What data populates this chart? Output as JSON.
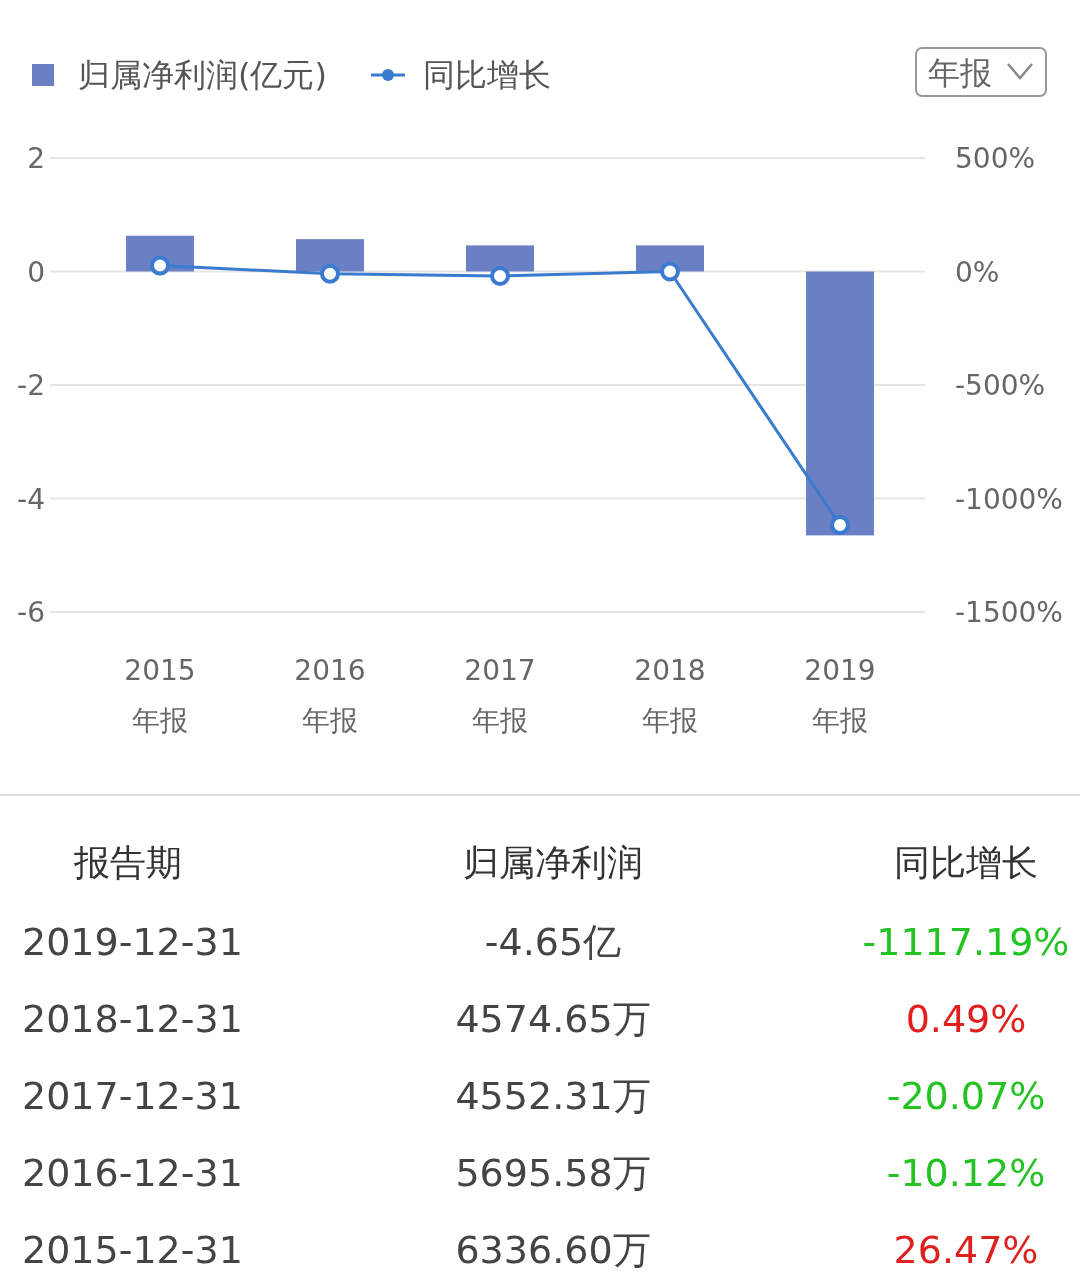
{
  "chart_data": {
    "type": "bar",
    "categories": [
      "2015 年报",
      "2016 年报",
      "2017 年报",
      "2018 年报",
      "2019 年报"
    ],
    "series": [
      {
        "name": "归属净利润(亿元)",
        "color": "#6b7fc4",
        "values": [
          0.63,
          0.57,
          0.46,
          0.46,
          -4.65
        ]
      },
      {
        "name": "同比增长",
        "type": "line",
        "axis": "y2",
        "color": "#3a7bd0",
        "marker": "circle",
        "values": [
          26,
          -10,
          -20,
          0,
          -1117
        ]
      }
    ],
    "ylim": [
      -6,
      2
    ],
    "yticks": [
      -6,
      -4,
      -2,
      0,
      2
    ],
    "y2lim": [
      -1500,
      500
    ],
    "y2ticks": [
      {
        "value": -1500,
        "label": "-1500%"
      },
      {
        "value": -1000,
        "label": "-1000%"
      },
      {
        "value": -500,
        "label": "-500%"
      },
      {
        "value": 0,
        "label": "0%"
      },
      {
        "value": 500,
        "label": "500%"
      }
    ],
    "grid": "y",
    "legend": "top left",
    "annotations": [
      "年报",
      "报告期",
      "归属净利润",
      "同比增长",
      "2019-12-31",
      "-4.65亿",
      "-1117.19%",
      "2018-12-31",
      "4574.65万",
      "0.49%",
      "2017-12-31",
      "4552.31万",
      "-20.07%",
      "2016-12-31",
      "5695.58万",
      "-10.12%",
      "2015-12-31",
      "6336.60万",
      "26.47%"
    ]
  }
}
